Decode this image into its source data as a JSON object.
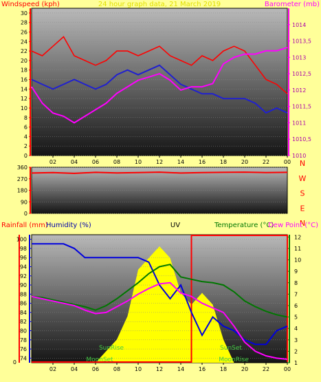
{
  "chart_data": [
    {
      "type": "line",
      "panel": "wind-barometer",
      "title": "24 hour graph data, 21 March 2019",
      "ylabel_left": "Windspeed (kph)",
      "ylabel_right": "Barometer (mb)",
      "ylim_left": [
        0,
        31
      ],
      "ylim_right": [
        1010,
        1014.5
      ],
      "y_ticks_left": [
        "0",
        "2",
        "4",
        "6",
        "8",
        "10",
        "12",
        "14",
        "16",
        "18",
        "20",
        "22",
        "24",
        "26",
        "28",
        "30"
      ],
      "y_ticks_right": [
        "1010",
        "1010,5",
        "1011",
        "1011,5",
        "1012",
        "1012,5",
        "1013",
        "1013,5",
        "1014"
      ],
      "x_ticks": [
        "02",
        "04",
        "06",
        "08",
        "10",
        "12",
        "14",
        "16",
        "18",
        "20",
        "22",
        "00"
      ],
      "x": [
        0,
        1,
        2,
        3,
        4,
        5,
        6,
        7,
        8,
        9,
        10,
        11,
        12,
        13,
        14,
        15,
        16,
        17,
        18,
        19,
        20,
        21,
        22,
        23,
        24
      ],
      "series": [
        {
          "role": "gust",
          "color": "#ff0000",
          "values": [
            22,
            21,
            23,
            25,
            21,
            20,
            19,
            20,
            22,
            22,
            21,
            22,
            23,
            21,
            20,
            19,
            21,
            20,
            22,
            23,
            22,
            19,
            16,
            15,
            13
          ]
        },
        {
          "role": "average",
          "color": "#2020d0",
          "values": [
            16,
            15,
            14,
            15,
            16,
            15,
            14,
            15,
            17,
            18,
            17,
            18,
            19,
            17,
            15,
            14,
            13,
            13,
            12,
            12,
            12,
            11,
            9,
            10,
            9
          ]
        },
        {
          "role": "barometer",
          "color": "#ff00ff",
          "values": [
            1012.1,
            1011.6,
            1011.3,
            1011.2,
            1011.0,
            1011.2,
            1011.4,
            1011.6,
            1011.9,
            1012.1,
            1012.3,
            1012.4,
            1012.5,
            1012.3,
            1012.0,
            1012.1,
            1012.1,
            1012.2,
            1012.8,
            1013.0,
            1013.1,
            1013.1,
            1013.2,
            1013.2,
            1013.3
          ]
        }
      ]
    },
    {
      "type": "line",
      "panel": "wind-direction",
      "ylim": [
        0,
        360
      ],
      "y_ticks": [
        "0",
        "90",
        "180",
        "270",
        "360"
      ],
      "compass_labels": [
        "N",
        "W",
        "S",
        "E",
        "N"
      ],
      "x": [
        0,
        2,
        4,
        6,
        8,
        10,
        12,
        14,
        16,
        18,
        20,
        22,
        24
      ],
      "series": [
        {
          "role": "direction",
          "color": "#ff0000",
          "values": [
            315,
            318,
            312,
            320,
            316,
            318,
            322,
            315,
            318,
            320,
            322,
            318,
            320
          ]
        }
      ]
    },
    {
      "type": "line",
      "panel": "rain-humidity-uv-temp",
      "labels": {
        "rainfall": "Rainfall (mm)",
        "humidity": "Humidity (%)",
        "uv": "UV",
        "temperature": "Temperature (°C)",
        "dewpoint": "Dew Point (°C)"
      },
      "ylim_humidity": [
        73,
        101
      ],
      "y_ticks_humidity": [
        "74",
        "76",
        "78",
        "80",
        "82",
        "84",
        "86",
        "88",
        "90",
        "92",
        "94",
        "96",
        "98",
        "100"
      ],
      "ylim_temp": [
        1,
        12.2
      ],
      "y_ticks_temp": [
        "1",
        "2",
        "3",
        "4",
        "5",
        "6",
        "7",
        "8",
        "9",
        "10",
        "11",
        "12"
      ],
      "rain_tick": "0",
      "annotations": [
        "SunRise",
        "SunSet",
        "MoonSet",
        "MoonRise"
      ],
      "x_ticks": [
        "02",
        "04",
        "06",
        "08",
        "10",
        "12",
        "14",
        "16",
        "18",
        "20",
        "22",
        "00"
      ],
      "x": [
        0,
        1,
        2,
        3,
        4,
        5,
        6,
        7,
        8,
        9,
        10,
        11,
        12,
        13,
        14,
        15,
        16,
        17,
        18,
        19,
        20,
        21,
        22,
        23,
        24
      ],
      "series": [
        {
          "role": "humidity",
          "color": "#0000dd",
          "values": [
            99,
            99,
            99,
            99,
            98,
            96,
            96,
            96,
            96,
            96,
            96,
            95,
            90,
            87,
            90,
            84,
            79,
            83,
            81,
            80,
            78,
            77,
            77,
            80,
            81
          ]
        },
        {
          "role": "temperature",
          "color": "#007700",
          "values": [
            6.8,
            6.7,
            6.5,
            6.3,
            6.1,
            5.9,
            5.6,
            6.0,
            6.6,
            7.3,
            8.0,
            8.8,
            9.4,
            9.6,
            8.5,
            8.3,
            8.1,
            8.0,
            7.8,
            7.2,
            6.4,
            5.9,
            5.5,
            5.2,
            5.0
          ]
        },
        {
          "role": "dewpoint",
          "color": "#ff00ff",
          "values": [
            6.8,
            6.6,
            6.4,
            6.2,
            6.0,
            5.6,
            5.3,
            5.4,
            5.9,
            6.4,
            7.0,
            7.5,
            7.9,
            8.0,
            7.1,
            6.8,
            6.2,
            5.8,
            5.4,
            4.2,
            2.8,
            2.0,
            1.6,
            1.4,
            1.3
          ]
        },
        {
          "role": "uv",
          "color": "#ffff00",
          "values": [
            0,
            0,
            0,
            0,
            0,
            0,
            0,
            1,
            2,
            4,
            8,
            9,
            10,
            9,
            6,
            5,
            6,
            5,
            2,
            0,
            0,
            0,
            0,
            0,
            0
          ]
        },
        {
          "role": "rainfall",
          "color": "#ff0000",
          "values": [
            0,
            0,
            0,
            0,
            0,
            0,
            0,
            0,
            0,
            0,
            0,
            0,
            0,
            0,
            0,
            1.5,
            1.5,
            1.5,
            1.5,
            1.5,
            1.5,
            1.5,
            1.5,
            1.5,
            1.5
          ]
        }
      ]
    }
  ]
}
